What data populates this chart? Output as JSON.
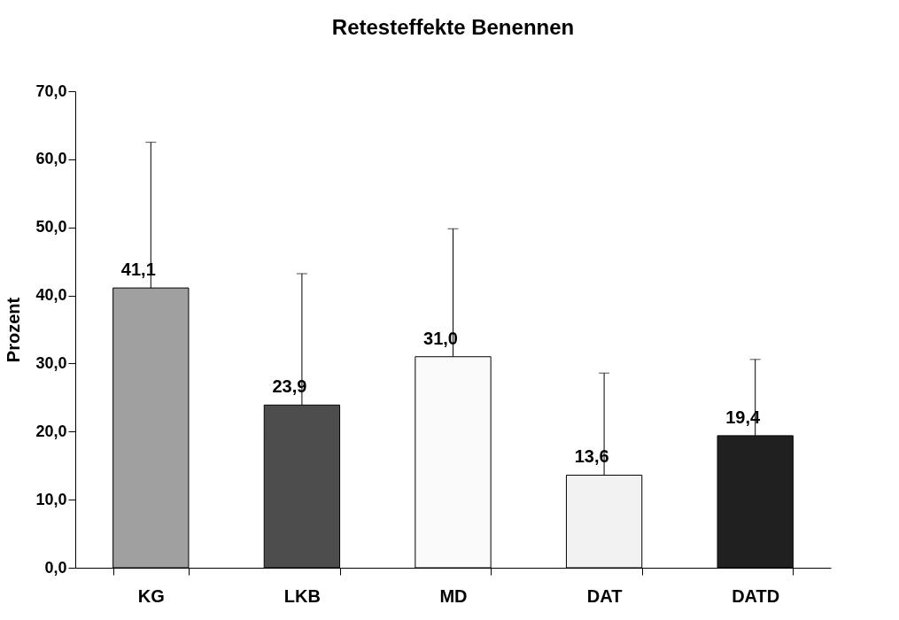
{
  "chart_data": {
    "type": "bar",
    "title": "Retesteffekte Benennen",
    "ylabel": "Prozent",
    "categories": [
      "KG",
      "LKB",
      "MD",
      "DAT",
      "DATD"
    ],
    "values": [
      41.1,
      23.9,
      31.0,
      13.6,
      19.4
    ],
    "colors": [
      "#a0a0a0",
      "#4d4d4d",
      "#fafafa",
      "#f2f2f2",
      "#202020"
    ],
    "value_labels": [
      "41,1",
      "23,9",
      "31,0",
      "13,6",
      "19,4"
    ],
    "errors": [
      [
        41.1,
        62.5
      ],
      [
        23.9,
        43.2
      ],
      [
        31.0,
        49.8
      ],
      [
        13.6,
        28.6
      ],
      [
        19.4,
        30.6
      ]
    ],
    "ylim": [
      0,
      70
    ],
    "yticks": [
      {
        "value": 0,
        "label": "0,0"
      },
      {
        "value": 10,
        "label": "10,0"
      },
      {
        "value": 20,
        "label": "20,0"
      },
      {
        "value": 30,
        "label": "30,0"
      },
      {
        "value": 40,
        "label": "40,0"
      },
      {
        "value": 50,
        "label": "50,0"
      },
      {
        "value": 60,
        "label": "60,0"
      },
      {
        "value": 70,
        "label": "70,0"
      }
    ],
    "grid": false,
    "legend": false
  }
}
